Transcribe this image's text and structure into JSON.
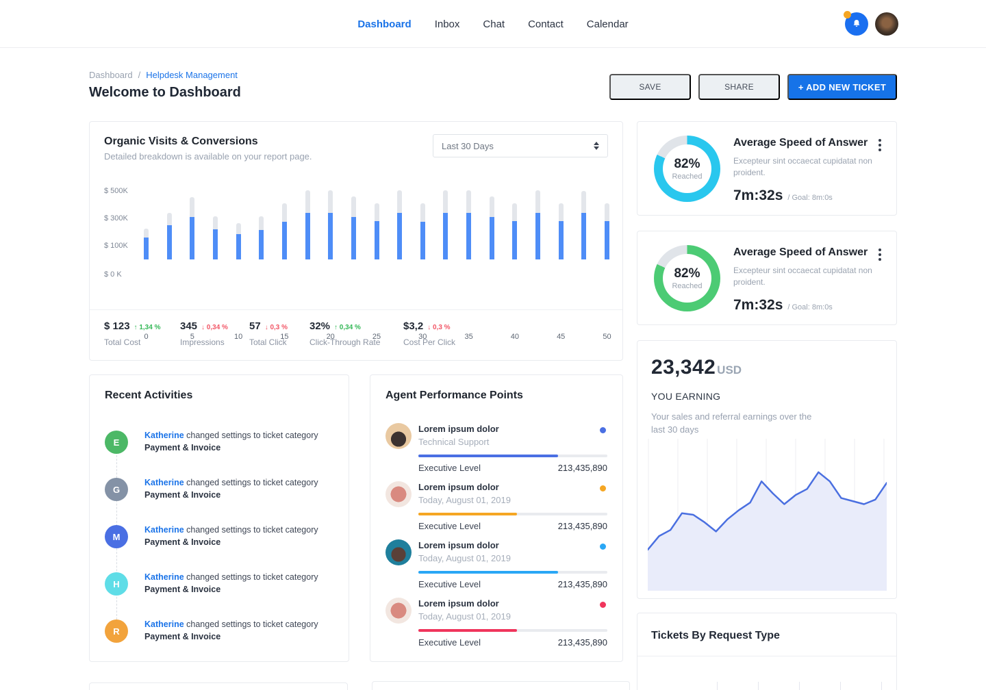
{
  "nav": {
    "items": [
      {
        "label": "Dashboard",
        "active": true
      },
      {
        "label": "Inbox",
        "active": false
      },
      {
        "label": "Chat",
        "active": false
      },
      {
        "label": "Contact",
        "active": false
      },
      {
        "label": "Calendar",
        "active": false
      }
    ]
  },
  "breadcrumb": {
    "parent": "Dashboard",
    "sep": "/",
    "current": "Helpdesk Management"
  },
  "page_title": "Welcome to Dashboard",
  "actions": {
    "save": "SAVE",
    "share": "SHARE",
    "add": "+ ADD NEW TICKET",
    "add_color": "#1673e8"
  },
  "organic": {
    "title": "Organic Visits & Conversions",
    "subtitle": "Detailed breakdown is available on your report page.",
    "range": "Last 30 Days",
    "up_color": "#34b857",
    "down_color": "#f25767",
    "stats": [
      {
        "value": "$ 123",
        "dir": "up",
        "change": "1,34 %",
        "label": "Total Cost"
      },
      {
        "value": "345",
        "dir": "down",
        "change": "0,34 %",
        "label": "Impressions"
      },
      {
        "value": "57",
        "dir": "down",
        "change": "0,3 %",
        "label": "Total Click"
      },
      {
        "value": "32%",
        "dir": "up",
        "change": "0,34 %",
        "label": "Click-Through Rate"
      },
      {
        "value": "$3,2",
        "dir": "down",
        "change": "0,3 %",
        "label": "Cost Per Click"
      }
    ]
  },
  "chart_data": [
    {
      "id": "organic-visits-conversions",
      "type": "bar",
      "title": "Organic Visits & Conversions",
      "x": [
        0,
        2.5,
        5,
        7.5,
        10,
        12.5,
        15,
        17.5,
        20,
        22.5,
        25,
        27.5,
        30,
        32.5,
        35,
        37.5,
        40,
        42.5,
        45,
        47.5,
        50
      ],
      "series": [
        {
          "name": "Visits total",
          "color": "#e3e6eb",
          "values": [
            225,
            345,
            460,
            320,
            270,
            320,
            415,
            510,
            510,
            465,
            415,
            510,
            415,
            510,
            510,
            465,
            415,
            510,
            415,
            505,
            415
          ]
        },
        {
          "name": "Conversions",
          "color": "#4e8df7",
          "values": [
            160,
            250,
            315,
            220,
            185,
            215,
            280,
            345,
            345,
            315,
            285,
            345,
            280,
            345,
            345,
            315,
            285,
            345,
            285,
            345,
            285
          ]
        }
      ],
      "unit": "$K",
      "ylim": [
        0,
        510
      ],
      "yticks": [
        "$ 500K",
        "$ 300K",
        "$ 100K",
        "$ 0 K"
      ],
      "xticks": [
        "0",
        "5",
        "10",
        "15",
        "20",
        "25",
        "30",
        "35",
        "40",
        "45",
        "50"
      ],
      "grid": false,
      "legend": "none"
    },
    {
      "id": "earnings-trend",
      "type": "area",
      "values": [
        27,
        36,
        40,
        51,
        50,
        45,
        39,
        47,
        53,
        58,
        72,
        64,
        57,
        63,
        67,
        78,
        72,
        61,
        59,
        57,
        60,
        71
      ],
      "ylim": [
        0,
        100
      ],
      "line_color": "#4a6fe0",
      "fill_color": "#e9ecfa",
      "gridlines": 9,
      "grid_color": "#ededf2",
      "legend": "none"
    }
  ],
  "recent": {
    "title": "Recent Activities",
    "items": [
      {
        "initial": "E",
        "color": "#4cb866",
        "actor": "Katherine",
        "text": "changed settings to ticket category",
        "category": "Payment & Invoice"
      },
      {
        "initial": "G",
        "color": "#8492a6",
        "actor": "Katherine",
        "text": "changed settings to ticket category",
        "category": "Payment & Invoice"
      },
      {
        "initial": "M",
        "color": "#4a6fe3",
        "actor": "Katherine",
        "text": "changed settings to ticket category",
        "category": "Payment & Invoice"
      },
      {
        "initial": "H",
        "color": "#5fdde7",
        "actor": "Katherine",
        "text": "changed settings to ticket category",
        "category": "Payment & Invoice"
      },
      {
        "initial": "R",
        "color": "#f2a33c",
        "actor": "Katherine",
        "text": "changed settings to ticket category",
        "category": "Payment & Invoice"
      }
    ]
  },
  "agents": {
    "title": "Agent Performance Points",
    "items": [
      {
        "name": "Lorem ipsum dolor",
        "subtitle": "Technical Support",
        "color": "#4a6fe3",
        "progress": 74,
        "level": "Executive Level",
        "points": "213,435,890"
      },
      {
        "name": "Lorem ipsum dolor",
        "subtitle": "Today, August 01, 2019",
        "color": "#f5a623",
        "progress": 52,
        "level": "Executive Level",
        "points": "213,435,890"
      },
      {
        "name": "Lorem ipsum dolor",
        "subtitle": "Today, August 01, 2019",
        "color": "#2aa7f5",
        "progress": 74,
        "level": "Executive Level",
        "points": "213,435,890"
      },
      {
        "name": "Lorem ipsum dolor",
        "subtitle": "Today, August 01, 2019",
        "color": "#f0355c",
        "progress": 52,
        "level": "Executive Level",
        "points": "213,435,890"
      }
    ]
  },
  "speed_cards": [
    {
      "title": "Average Speed of Answer",
      "pct": 82,
      "pct_label": "82%",
      "reached": "Reached",
      "desc": "Excepteur sint occaecat cupidatat non proident.",
      "time": "7m:32s",
      "goal": "/ Goal: 8m:0s",
      "ring_color": "#29c7ee",
      "track_color": "#e0e4e9"
    },
    {
      "title": "Average Speed of Answer",
      "pct": 82,
      "pct_label": "82%",
      "reached": "Reached",
      "desc": "Excepteur sint occaecat cupidatat non proident.",
      "time": "7m:32s",
      "goal": "/ Goal: 8m:0s",
      "ring_color": "#4ccb74",
      "track_color": "#e0e4e9"
    }
  ],
  "earnings": {
    "amount": "23,342",
    "currency": "USD",
    "label": "YOU EARNING",
    "desc": "Your sales and referral earnings over the last 30 days"
  },
  "tickets": {
    "title": "Tickets By Request Type"
  }
}
